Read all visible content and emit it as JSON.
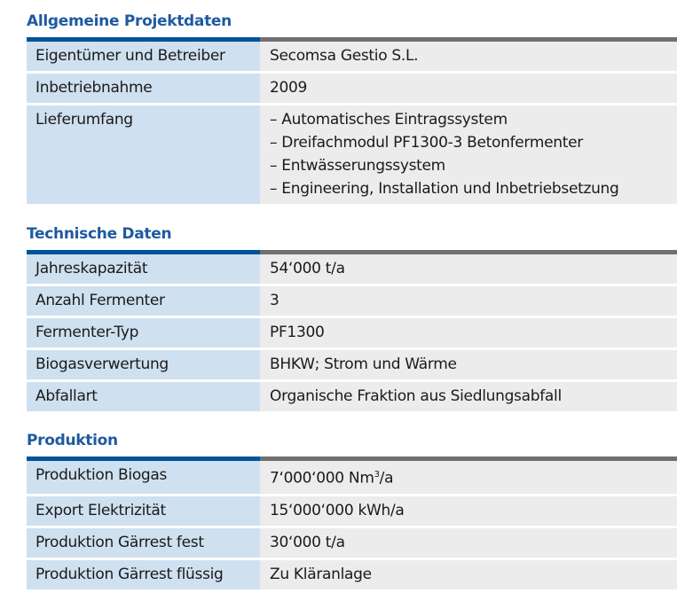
{
  "sections": [
    {
      "title": "Allgemeine Projektdaten",
      "rows": [
        {
          "label": "Eigentümer und Betreiber",
          "value": "Secomsa Gestio S.L."
        },
        {
          "label": "Inbetriebnahme",
          "value": "2009"
        },
        {
          "label": "Lieferumfang",
          "items": [
            "– Automatisches Eintragssystem",
            "– Dreifachmodul PF1300-3 Betonfermenter",
            "– Entwässerungssystem",
            "– Engineering, Installation und Inbetriebsetzung"
          ]
        }
      ]
    },
    {
      "title": "Technische Daten",
      "rows": [
        {
          "label": "Jahreskapazität",
          "value": "54‘000 t/a"
        },
        {
          "label": "Anzahl Fermenter",
          "value": "3"
        },
        {
          "label": "Fermenter-Typ",
          "value": "PF1300"
        },
        {
          "label": "Biogasverwertung",
          "value": "BHKW; Strom und Wärme"
        },
        {
          "label": "Abfallart",
          "value": "Organische Fraktion aus Siedlungsabfall"
        }
      ]
    },
    {
      "title": "Produktion",
      "rows": [
        {
          "label": "Produktion Biogas",
          "value": "7‘000‘000 Nm",
          "sup": "3",
          "suffix": "/a"
        },
        {
          "label": "Export Elektrizität",
          "value": "15‘000‘000 kWh/a"
        },
        {
          "label": "Produktion Gärrest fest",
          "value": "30‘000 t/a"
        },
        {
          "label": "Produktion Gärrest flüssig",
          "value": "Zu Kläranlage"
        }
      ]
    }
  ]
}
